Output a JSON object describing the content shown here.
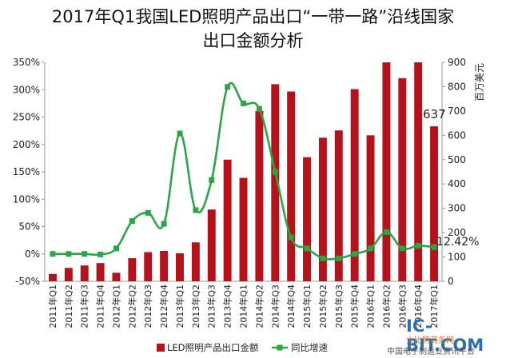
{
  "chart_data": {
    "type": "bar",
    "title_line1": "2017年Q1我国LED照明产品出口“一带一路”沿线国家",
    "title_line2": "出口金额分析",
    "right_axis_label": "百万美元",
    "categories": [
      "2011年Q1",
      "2011年Q2",
      "2011年Q3",
      "2011年Q4",
      "2012年Q1",
      "2012年Q2",
      "2012年Q3",
      "2012年Q4",
      "2013年Q1",
      "2013年Q2",
      "2013年Q3",
      "2013年Q4",
      "2014年Q1",
      "2014年Q2",
      "2014年Q3",
      "2014年Q4",
      "2015年Q1",
      "2015年Q2",
      "2015年Q3",
      "2015年Q4",
      "2016年Q1",
      "2016年Q2",
      "2016年Q3",
      "2016年Q4",
      "2017年Q1"
    ],
    "left_ticks": [
      "350%",
      "300%",
      "250%",
      "200%",
      "150%",
      "100%",
      "50%",
      "0%",
      "-50%"
    ],
    "right_ticks": [
      "900",
      "800",
      "700",
      "600",
      "500",
      "400",
      "300",
      "200",
      "100",
      "0"
    ],
    "left_ylim": [
      -50,
      350
    ],
    "right_ylim": [
      0,
      900
    ],
    "series": [
      {
        "name": "LED照明产品出口金额",
        "type": "bar",
        "axis": "right",
        "color": "#b5121b",
        "values": [
          30,
          55,
          65,
          75,
          35,
          95,
          120,
          125,
          115,
          160,
          295,
          500,
          425,
          700,
          810,
          780,
          510,
          590,
          620,
          790,
          600,
          920,
          835,
          960,
          637
        ]
      },
      {
        "name": "同比增速",
        "type": "line",
        "axis": "left",
        "color": "#2aa646",
        "values": [
          0,
          0,
          0,
          -1,
          10,
          60,
          75,
          55,
          220,
          80,
          135,
          305,
          275,
          265,
          150,
          30,
          10,
          -8,
          -8,
          0,
          10,
          40,
          10,
          15,
          12.42
        ]
      }
    ],
    "annotations": [
      {
        "text": "637",
        "series": "LED照明产品出口金额",
        "index": 24
      },
      {
        "text": "12.42%",
        "series": "同比增速",
        "index": 24
      }
    ],
    "legend_position": "bottom",
    "grid": false
  },
  "watermark": {
    "brand": "IC-BIT.COM",
    "tagline": "大比特商务网",
    "subtitle": "中国电子制造业资讯平台"
  }
}
